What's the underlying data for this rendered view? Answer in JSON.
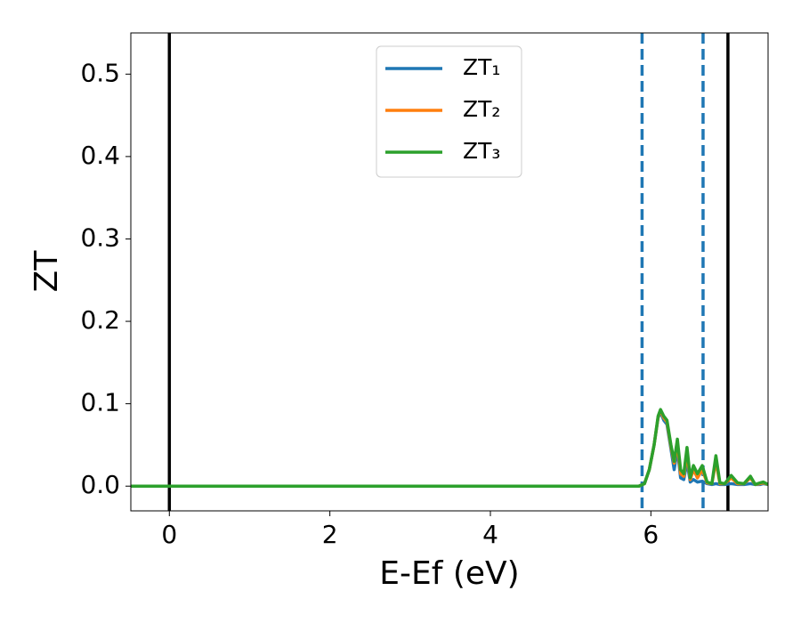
{
  "chart_data": {
    "type": "line",
    "xlabel": "E-Ef (eV)",
    "ylabel": "ZT",
    "xlim": [
      -0.48,
      7.46
    ],
    "ylim": [
      -0.03,
      0.55
    ],
    "xticks": [
      0,
      2,
      4,
      6
    ],
    "yticks": [
      {
        "value": 0,
        "label": "0.0"
      },
      0.1,
      0.2,
      0.3,
      0.4,
      0.5
    ],
    "legend": "upper center",
    "x": [
      -0.48,
      5.85,
      5.92,
      5.98,
      6.04,
      6.09,
      6.12,
      6.16,
      6.2,
      6.25,
      6.29,
      6.33,
      6.37,
      6.41,
      6.45,
      6.49,
      6.53,
      6.58,
      6.64,
      6.7,
      6.76,
      6.81,
      6.86,
      6.92,
      7.0,
      7.08,
      7.16,
      7.24,
      7.3,
      7.36,
      7.4,
      7.46
    ],
    "series": [
      {
        "name": "ZT₁",
        "color": "#1f77b4",
        "values": [
          0,
          0,
          0.003,
          0.02,
          0.05,
          0.083,
          0.09,
          0.08,
          0.075,
          0.045,
          0.02,
          0.045,
          0.01,
          0.008,
          0.03,
          0.005,
          0.008,
          0.005,
          0.006,
          0.003,
          0.002,
          0.003,
          0.002,
          0.002,
          0.003,
          0.002,
          0.002,
          0.003,
          0.002,
          0.002,
          0.003,
          0.002
        ]
      },
      {
        "name": "ZT₂",
        "color": "#ff7f0e",
        "values": [
          0,
          0,
          0.003,
          0.02,
          0.05,
          0.084,
          0.092,
          0.083,
          0.078,
          0.048,
          0.028,
          0.052,
          0.015,
          0.012,
          0.04,
          0.008,
          0.02,
          0.01,
          0.02,
          0.004,
          0.003,
          0.03,
          0.003,
          0.003,
          0.01,
          0.003,
          0.003,
          0.01,
          0.002,
          0.003,
          0.004,
          0.002
        ]
      },
      {
        "name": "ZT₃",
        "color": "#2ca02c",
        "values": [
          0,
          0,
          0.003,
          0.02,
          0.05,
          0.085,
          0.093,
          0.085,
          0.08,
          0.05,
          0.03,
          0.057,
          0.02,
          0.015,
          0.047,
          0.01,
          0.025,
          0.015,
          0.025,
          0.005,
          0.003,
          0.037,
          0.004,
          0.003,
          0.013,
          0.004,
          0.003,
          0.012,
          0.002,
          0.004,
          0.005,
          0.002
        ]
      }
    ],
    "vlines": [
      {
        "x": 0,
        "color": "#000000",
        "style": "solid"
      },
      {
        "x": 6.96,
        "color": "#000000",
        "style": "solid"
      },
      {
        "x": 5.89,
        "color": "#1f77b4",
        "style": "dashed"
      },
      {
        "x": 6.65,
        "color": "#1f77b4",
        "style": "dashed"
      }
    ]
  }
}
